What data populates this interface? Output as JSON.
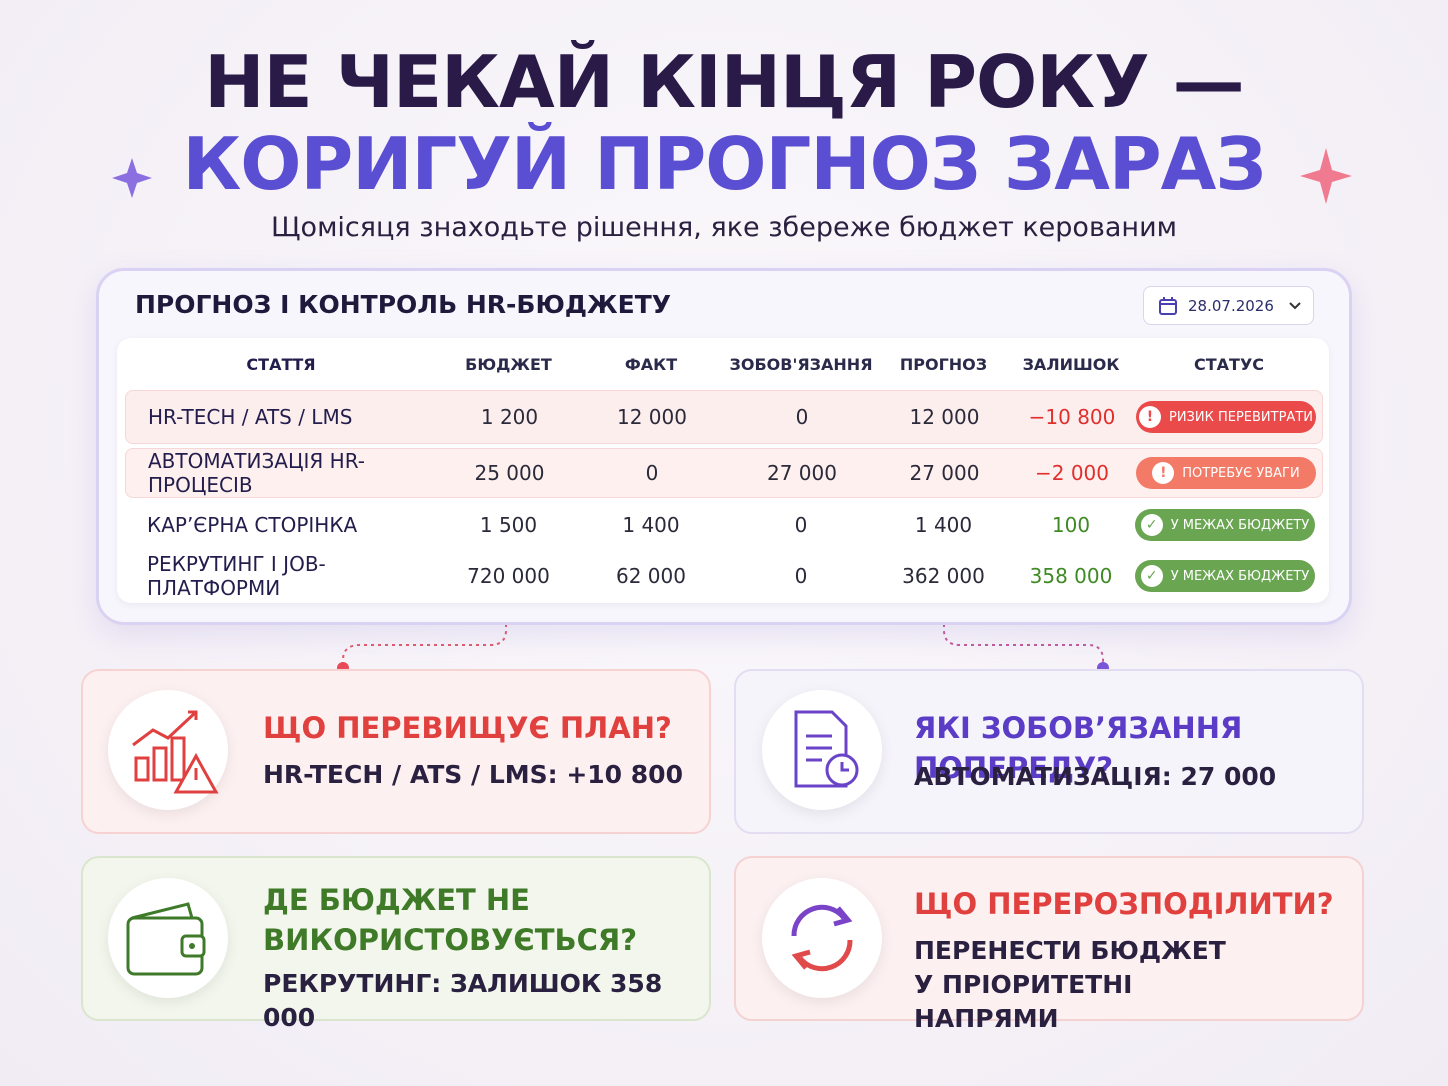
{
  "header": {
    "title_line1": "НЕ ЧЕКАЙ КІНЦЯ РОКУ —",
    "title_line2": "КОРИГУЙ ПРОГНОЗ ЗАРАЗ",
    "subtitle": "Щомісяця знаходьте рішення, яке збереже бюджет керованим"
  },
  "panel": {
    "title": "ПРОГНОЗ І КОНТРОЛЬ HR-БЮДЖЕТУ",
    "date": "28.07.2026"
  },
  "table": {
    "columns": [
      "СТАТТЯ",
      "БЮДЖЕТ",
      "ФАКТ",
      "ЗОБОВ'ЯЗАННЯ",
      "ПРОГНОЗ",
      "ЗАЛИШОК",
      "СТАТУС"
    ],
    "rows": [
      [
        "HR-TECH / ATS / LMS",
        "1 200",
        "12 000",
        "0",
        "12 000",
        "−10 800",
        "РИЗИК ПЕРЕВИТРАТИ"
      ],
      [
        "АВТОМАТИЗАЦІЯ HR-ПРОЦЕСІВ",
        "25 000",
        "0",
        "27 000",
        "27 000",
        "−2 000",
        "ПОТРЕБУЄ УВАГИ"
      ],
      [
        "КАР’ЄРНА СТОРІНКА",
        "1 500",
        "1 400",
        "0",
        "1 400",
        "100",
        "У МЕЖАХ БЮДЖЕТУ"
      ],
      [
        "РЕКРУТИНГ І JOB-ПЛАТФОРМИ",
        "720 000",
        "62 000",
        "0",
        "362 000",
        "358 000",
        "У МЕЖАХ БЮДЖЕТУ"
      ]
    ]
  },
  "cards": [
    {
      "title": "ЩО ПЕРЕВИЩУЄ ПЛАН?",
      "text": "HR-TECH / ATS / LMS: +10 800"
    },
    {
      "title": "ЯКІ ЗОБОВ’ЯЗАННЯ ПОПЕРЕДУ?",
      "text": "АВТОМАТИЗАЦІЯ: 27 000"
    },
    {
      "title": "ДЕ БЮДЖЕТ НЕ ВИКОРИСТОВУЄТЬСЯ?",
      "text": "РЕКРУТИНГ: ЗАЛИШОК 358 000"
    },
    {
      "title": "ЩО ПЕРЕРОЗПОДІЛИТИ?",
      "text": "ПЕРЕНЕСТИ БЮДЖЕТ У ПРІОРИТЕТНІ НАПРЯМИ"
    }
  ]
}
